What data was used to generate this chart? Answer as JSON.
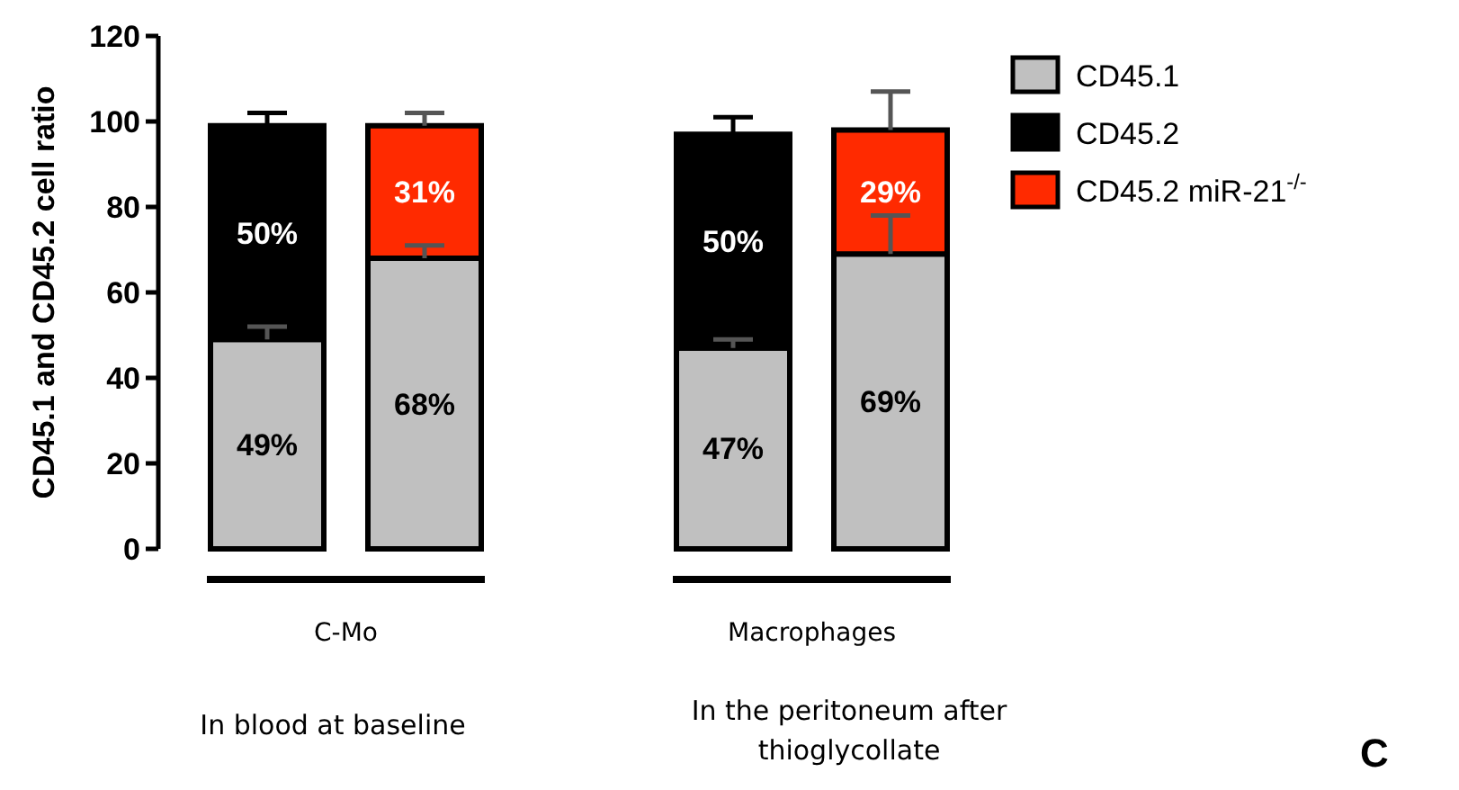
{
  "chart_data": {
    "type": "bar",
    "stacked": true,
    "ylabel": "CD45.1 and CD45.2 cell ratio",
    "categories": [
      null,
      null,
      null,
      null
    ],
    "series": [
      {
        "name": "CD45.1",
        "color": "#c0c0c0",
        "values": [
          49,
          68,
          47,
          69
        ],
        "value_labels": [
          "49%",
          "68%",
          "47%",
          "69%"
        ],
        "errors": [
          [
            49,
            52
          ],
          [
            68,
            71
          ],
          [
            47,
            49
          ],
          [
            69,
            78
          ]
        ]
      },
      {
        "name": "CD45.2",
        "color": "#000000",
        "values": [
          50,
          null,
          50,
          null
        ],
        "value_labels": [
          "50%",
          null,
          "50%",
          null
        ],
        "errors": [
          [
            99,
            102
          ],
          null,
          [
            97,
            101
          ],
          null
        ]
      },
      {
        "name": "CD45.2 miR-21$^{-/-}$",
        "color": "#ff2a00",
        "values": [
          null,
          31,
          null,
          29
        ],
        "value_labels": [
          null,
          "31%",
          null,
          "29%"
        ],
        "errors": [
          null,
          [
            99,
            102
          ],
          null,
          [
            98,
            107
          ]
        ]
      }
    ],
    "ylim": [
      0,
      120
    ],
    "yticks": [
      0,
      20,
      40,
      60,
      80,
      100,
      120
    ],
    "legend": "top right",
    "tick_labels": "y",
    "annotations": [
      "C-Mo",
      "Macrophages",
      "In blood at baseline",
      "In the peritoneum after thioglycollate",
      "C"
    ]
  }
}
